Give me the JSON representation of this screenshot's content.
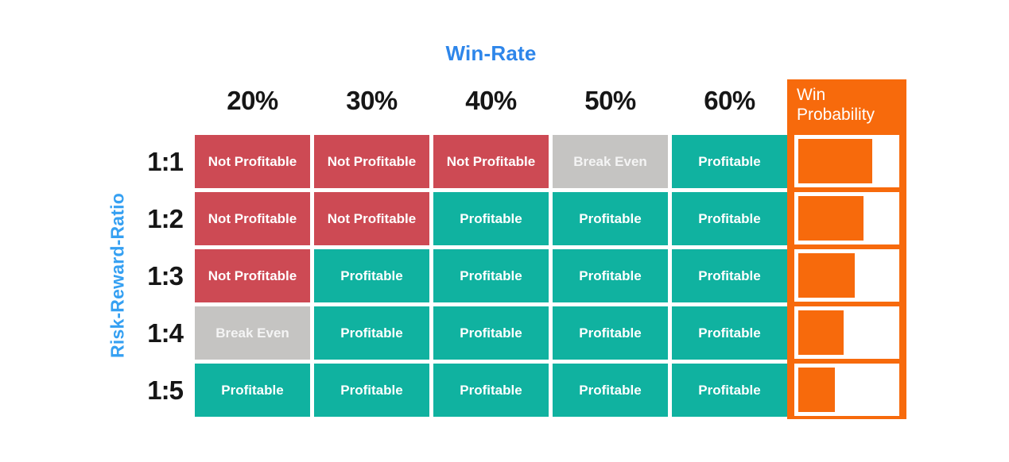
{
  "title": "Win-Rate",
  "y_axis_label": "Risk-Reward-Ratio",
  "columns": [
    "20%",
    "30%",
    "40%",
    "50%",
    "60%"
  ],
  "rows": [
    "1:1",
    "1:2",
    "1:3",
    "1:4",
    "1:5"
  ],
  "cells": [
    [
      "Not Profitable",
      "Not Profitable",
      "Not Profitable",
      "Break Even",
      "Profitable"
    ],
    [
      "Not Profitable",
      "Not Profitable",
      "Profitable",
      "Profitable",
      "Profitable"
    ],
    [
      "Not Profitable",
      "Profitable",
      "Profitable",
      "Profitable",
      "Profitable"
    ],
    [
      "Break Even",
      "Profitable",
      "Profitable",
      "Profitable",
      "Profitable"
    ],
    [
      "Profitable",
      "Profitable",
      "Profitable",
      "Profitable",
      "Profitable"
    ]
  ],
  "win_probability": {
    "header": "Win Probability",
    "bar_fractions": [
      0.76,
      0.67,
      0.58,
      0.47,
      0.38
    ]
  },
  "colors": {
    "not_profitable": "#cd4a54",
    "break_even": "#c5c4c2",
    "profitable": "#10b2a0",
    "accent_orange": "#f76a0c",
    "title_blue": "#2e86ea",
    "axis_blue": "#35a0f2",
    "text_dark": "#161616"
  },
  "chart_data": {
    "type": "heatmap",
    "title": "Win-Rate",
    "xlabel": "Win-Rate",
    "ylabel": "Risk-Reward-Ratio",
    "x_categories": [
      "20%",
      "30%",
      "40%",
      "50%",
      "60%"
    ],
    "y_categories": [
      "1:1",
      "1:2",
      "1:3",
      "1:4",
      "1:5"
    ],
    "values": [
      [
        "Not Profitable",
        "Not Profitable",
        "Not Profitable",
        "Break Even",
        "Profitable"
      ],
      [
        "Not Profitable",
        "Not Profitable",
        "Profitable",
        "Profitable",
        "Profitable"
      ],
      [
        "Not Profitable",
        "Profitable",
        "Profitable",
        "Profitable",
        "Profitable"
      ],
      [
        "Break Even",
        "Profitable",
        "Profitable",
        "Profitable",
        "Profitable"
      ],
      [
        "Profitable",
        "Profitable",
        "Profitable",
        "Profitable",
        "Profitable"
      ]
    ],
    "value_color_map": {
      "Not Profitable": "#cd4a54",
      "Break Even": "#c5c4c2",
      "Profitable": "#10b2a0"
    },
    "side_panel": {
      "type": "bar",
      "label": "Win Probability",
      "orientation": "horizontal",
      "categories": [
        "1:1",
        "1:2",
        "1:3",
        "1:4",
        "1:5"
      ],
      "bar_fractions": [
        0.76,
        0.67,
        0.58,
        0.47,
        0.38
      ]
    },
    "grid": false,
    "legend_position": "none"
  }
}
